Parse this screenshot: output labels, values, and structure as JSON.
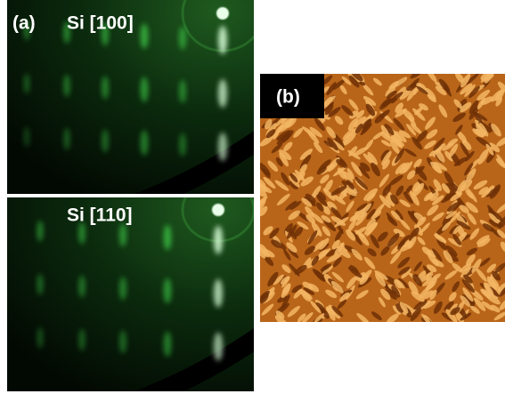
{
  "panel_a": {
    "label": "(a)",
    "top": {
      "title": "Si [100]"
    },
    "bottom": {
      "title": "Si [110]"
    }
  },
  "panel_b": {
    "label": "(b)"
  }
}
